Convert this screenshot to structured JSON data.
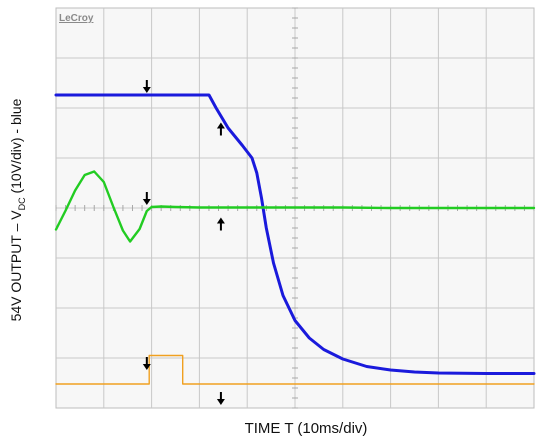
{
  "brand": "LeCroy",
  "chart_data": {
    "type": "line",
    "xlabel": "TIME  T  (10ms/div)",
    "ylabel_main": "54V OUTPUT – V",
    "ylabel_sub": "DC",
    "ylabel_tail": "  (10V/div) - blue",
    "divisions": {
      "x": 10,
      "y": 8
    },
    "xlim": [
      0,
      10
    ],
    "ylim": [
      0,
      8
    ],
    "colors": {
      "blue": "#1a1adc",
      "green": "#22cc22",
      "orange": "#f0a020",
      "grid": "#c8c8c8",
      "bg": "#f7f7f7"
    },
    "series": [
      {
        "color": "blue",
        "x": [
          0,
          0.6,
          1.2,
          1.9,
          2.6,
          3.2,
          3.35,
          3.6,
          3.9,
          4.1,
          4.2,
          4.3,
          4.4,
          4.55,
          4.75,
          5.0,
          5.3,
          5.6,
          6.0,
          6.5,
          7.0,
          7.5,
          8.0,
          9.0,
          10.0
        ],
        "y": [
          6.26,
          6.26,
          6.26,
          6.26,
          6.26,
          6.26,
          6.0,
          5.6,
          5.25,
          5.0,
          4.7,
          4.2,
          3.6,
          2.9,
          2.25,
          1.75,
          1.4,
          1.17,
          0.98,
          0.83,
          0.76,
          0.72,
          0.7,
          0.69,
          0.69
        ]
      },
      {
        "color": "green",
        "x": [
          0,
          0.2,
          0.4,
          0.6,
          0.8,
          1.0,
          1.2,
          1.4,
          1.55,
          1.75,
          1.9,
          2.0,
          2.2,
          2.5,
          3.0,
          4.0,
          5.0,
          6.0,
          7.0,
          8.0,
          9.0,
          10.0
        ],
        "y": [
          3.57,
          3.95,
          4.35,
          4.66,
          4.73,
          4.52,
          4.02,
          3.55,
          3.33,
          3.58,
          3.94,
          4.02,
          4.03,
          4.02,
          4.01,
          4.01,
          4.01,
          4.01,
          4.0,
          4.0,
          4.0,
          4.0
        ]
      },
      {
        "color": "orange",
        "x": [
          0,
          1.95,
          1.95,
          2.65,
          2.65,
          10.0
        ],
        "y": [
          0.48,
          0.48,
          1.05,
          1.05,
          0.48,
          0.48
        ]
      }
    ],
    "markers": [
      {
        "x": 1.9,
        "y": 6.26,
        "dir": "down"
      },
      {
        "x": 3.45,
        "y": 5.75,
        "dir": "up"
      },
      {
        "x": 1.9,
        "y": 4.02,
        "dir": "down"
      },
      {
        "x": 3.45,
        "y": 3.85,
        "dir": "up"
      },
      {
        "x": 1.9,
        "y": 0.72,
        "dir": "down"
      },
      {
        "x": 3.45,
        "y": 0.02,
        "dir": "down"
      }
    ]
  }
}
